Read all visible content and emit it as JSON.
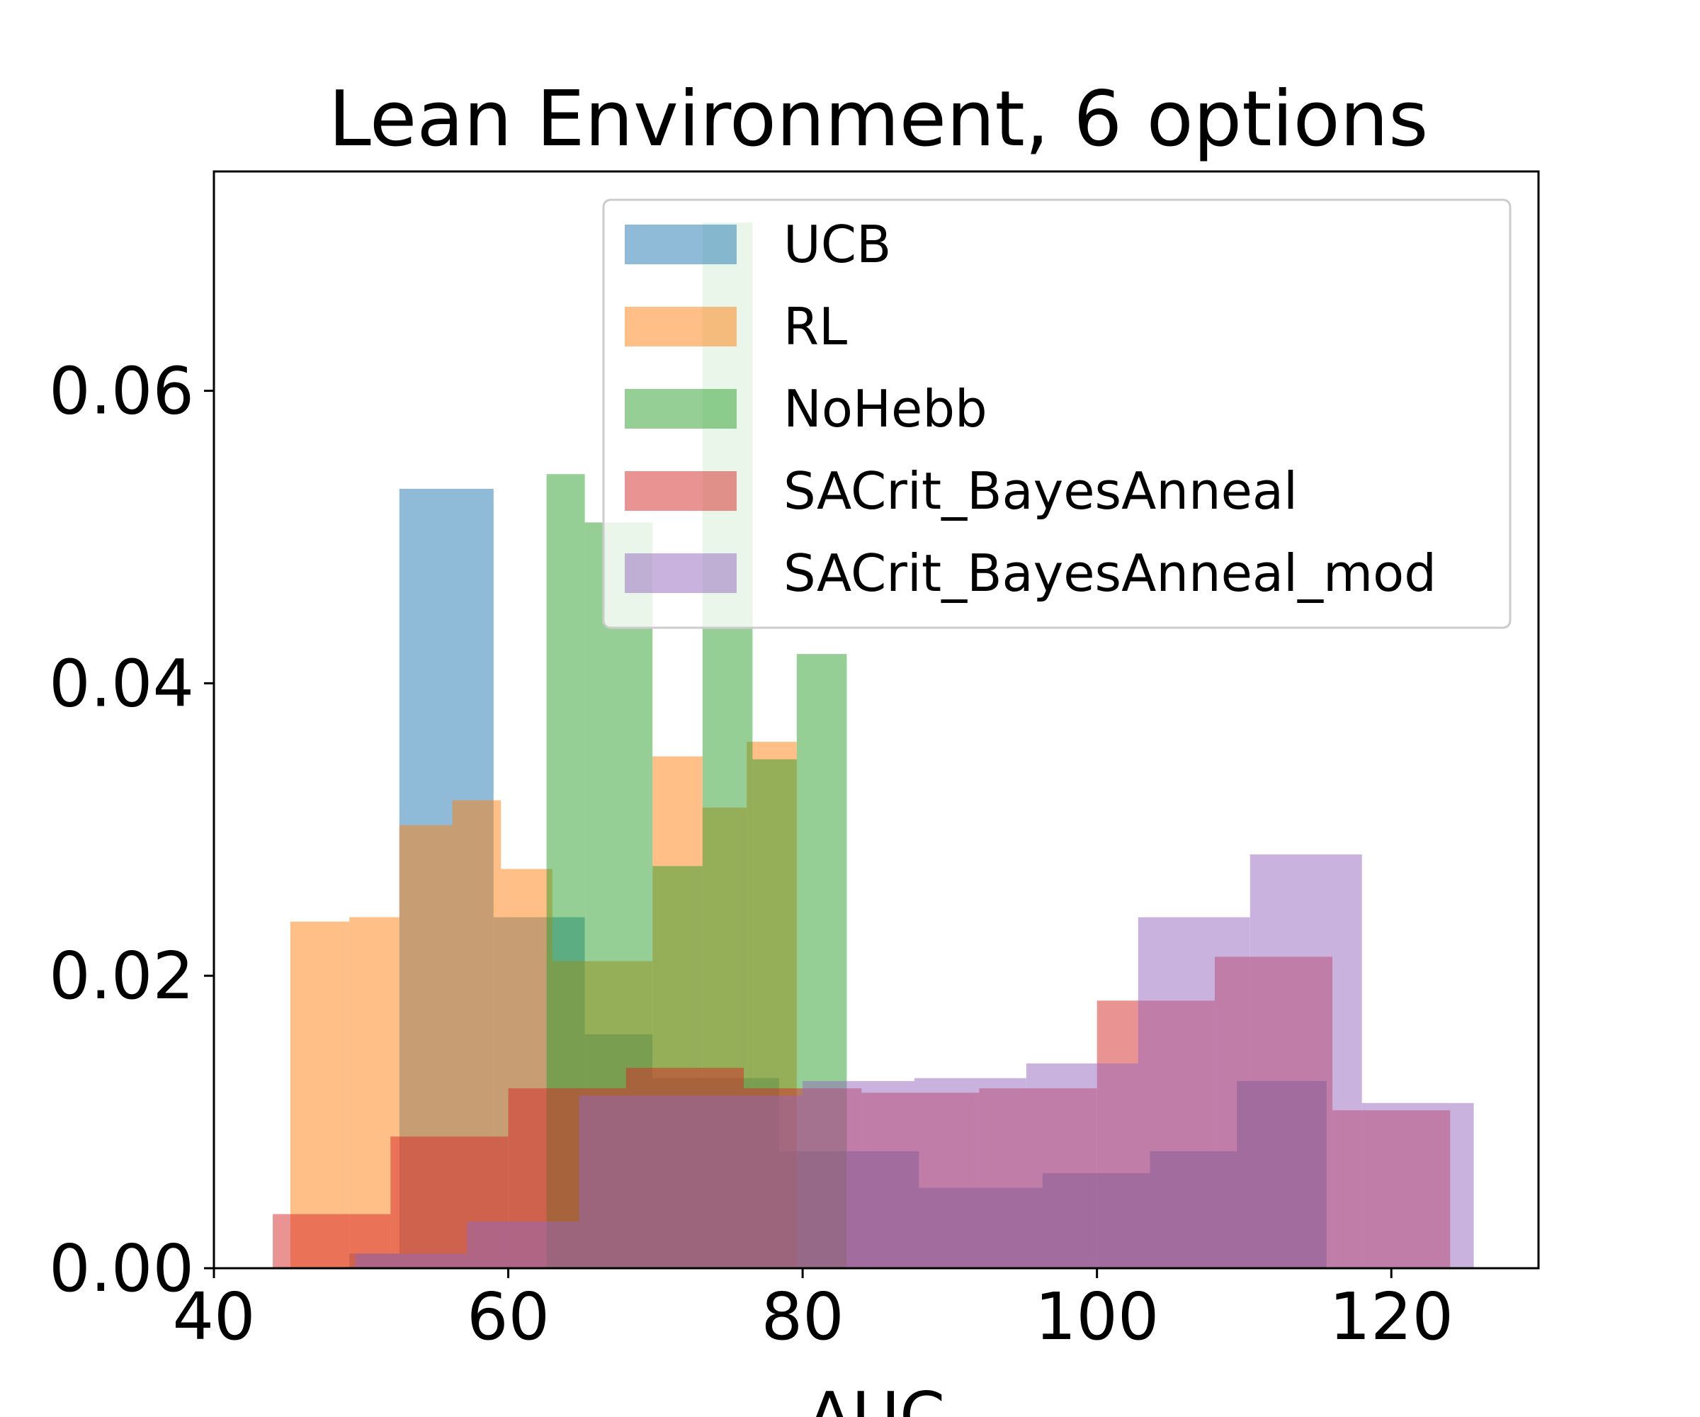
{
  "chart_data": {
    "type": "histogram",
    "title": "Lean Environment, 6 options",
    "xlabel": "AUC",
    "ylabel": "",
    "xlim": [
      40,
      130
    ],
    "ylim": [
      0,
      0.075
    ],
    "x_ticks": [
      40,
      60,
      80,
      100,
      120
    ],
    "x_tick_labels": [
      "40",
      "60",
      "80",
      "100",
      "120"
    ],
    "y_ticks": [
      0.0,
      0.02,
      0.04,
      0.06
    ],
    "y_tick_labels": [
      "0.00",
      "0.02",
      "0.04",
      "0.06"
    ],
    "grid": false,
    "legend_position": "top-right",
    "series": [
      {
        "name": "UCB",
        "color": "#1f77b4",
        "bins": [
          [
            49.2,
            52.6,
            0.001
          ],
          [
            52.6,
            59.0,
            0.0533
          ],
          [
            59.0,
            65.2,
            0.024
          ],
          [
            65.2,
            69.8,
            0.016
          ],
          [
            69.8,
            78.4,
            0.013
          ],
          [
            78.4,
            87.9,
            0.008
          ],
          [
            87.9,
            96.3,
            0.0055
          ],
          [
            96.3,
            103.6,
            0.0065
          ],
          [
            103.6,
            109.5,
            0.008
          ],
          [
            109.5,
            115.6,
            0.0128
          ]
        ]
      },
      {
        "name": "RL",
        "color": "#ff7f0e",
        "bins": [
          [
            45.2,
            49.2,
            0.0237
          ],
          [
            49.2,
            52.6,
            0.024
          ],
          [
            52.6,
            56.2,
            0.0303
          ],
          [
            56.2,
            59.5,
            0.032
          ],
          [
            59.5,
            63.0,
            0.0273
          ],
          [
            63.0,
            69.8,
            0.021
          ],
          [
            69.8,
            73.2,
            0.035
          ],
          [
            73.2,
            76.2,
            0.0315
          ],
          [
            76.2,
            79.6,
            0.036
          ]
        ]
      },
      {
        "name": "NoHebb",
        "color": "#2ca02c",
        "bins": [
          [
            62.6,
            65.2,
            0.0543
          ],
          [
            65.2,
            69.8,
            0.051
          ],
          [
            69.8,
            73.2,
            0.0275
          ],
          [
            73.2,
            76.6,
            0.0715
          ],
          [
            76.6,
            79.6,
            0.0348
          ],
          [
            79.6,
            83.0,
            0.042
          ]
        ]
      },
      {
        "name": "SACrit_BayesAnneal",
        "color": "#d62728",
        "bins": [
          [
            44.0,
            52.0,
            0.0037
          ],
          [
            52.0,
            60.0,
            0.009
          ],
          [
            60.0,
            68.0,
            0.0123
          ],
          [
            68.0,
            76.0,
            0.0137
          ],
          [
            76.0,
            84.0,
            0.0123
          ],
          [
            84.0,
            92.0,
            0.012
          ],
          [
            92.0,
            100.0,
            0.0123
          ],
          [
            100.0,
            108.0,
            0.0183
          ],
          [
            108.0,
            116.0,
            0.0213
          ],
          [
            116.0,
            124.0,
            0.0108
          ]
        ]
      },
      {
        "name": "SACrit_BayesAnneal_mod",
        "color": "#9467bd",
        "bins": [
          [
            49.6,
            57.2,
            0.001
          ],
          [
            57.2,
            64.8,
            0.0032
          ],
          [
            64.8,
            72.4,
            0.0118
          ],
          [
            72.4,
            80.0,
            0.0118
          ],
          [
            80.0,
            87.6,
            0.0128
          ],
          [
            87.6,
            95.2,
            0.013
          ],
          [
            95.2,
            102.8,
            0.014
          ],
          [
            102.8,
            110.4,
            0.024
          ],
          [
            110.4,
            118.0,
            0.0283
          ],
          [
            118.0,
            125.6,
            0.0113
          ]
        ]
      }
    ]
  }
}
